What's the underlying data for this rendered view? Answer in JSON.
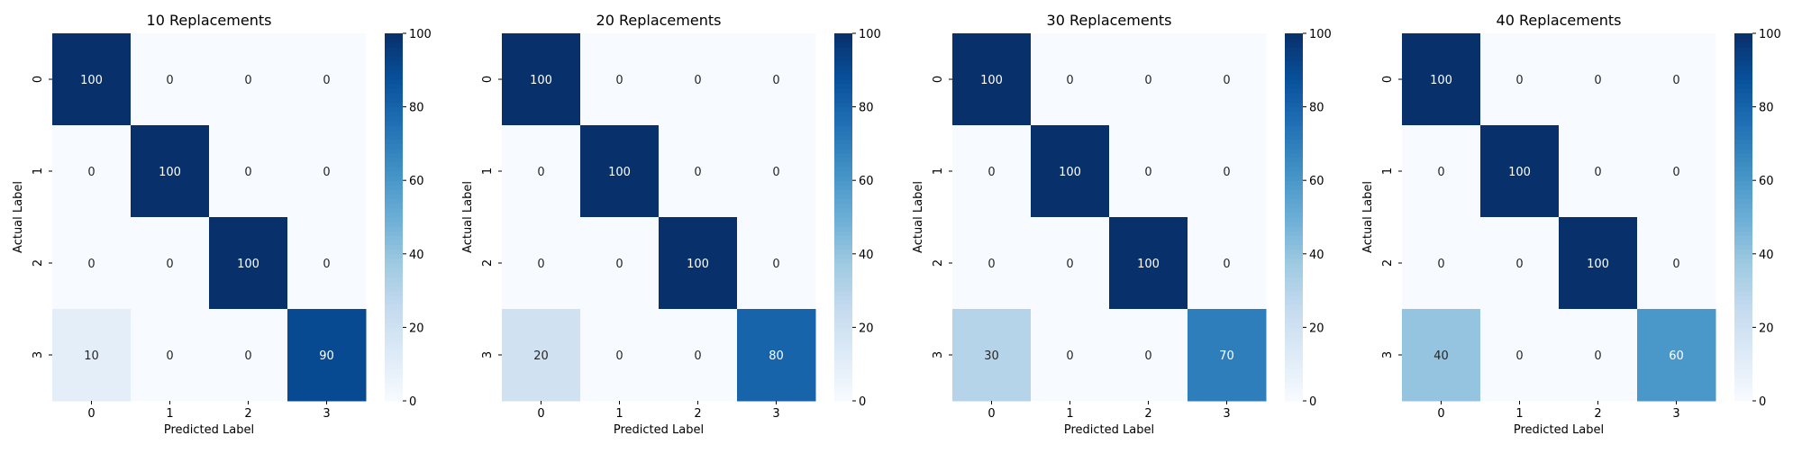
{
  "chart_data": [
    {
      "type": "heatmap",
      "title": "10 Replacements",
      "xlabel": "Predicted Label",
      "ylabel": "Actual Label",
      "x_categories": [
        "0",
        "1",
        "2",
        "3"
      ],
      "y_categories": [
        "0",
        "1",
        "2",
        "3"
      ],
      "values": [
        [
          100,
          0,
          0,
          0
        ],
        [
          0,
          100,
          0,
          0
        ],
        [
          0,
          0,
          100,
          0
        ],
        [
          10,
          0,
          0,
          90
        ]
      ],
      "colorbar": {
        "min": 0,
        "max": 100,
        "ticks": [
          "0",
          "20",
          "40",
          "60",
          "80",
          "100"
        ]
      },
      "colormap": "Blues"
    },
    {
      "type": "heatmap",
      "title": "20 Replacements",
      "xlabel": "Predicted Label",
      "ylabel": "Actual Label",
      "x_categories": [
        "0",
        "1",
        "2",
        "3"
      ],
      "y_categories": [
        "0",
        "1",
        "2",
        "3"
      ],
      "values": [
        [
          100,
          0,
          0,
          0
        ],
        [
          0,
          100,
          0,
          0
        ],
        [
          0,
          0,
          100,
          0
        ],
        [
          20,
          0,
          0,
          80
        ]
      ],
      "colorbar": {
        "min": 0,
        "max": 100,
        "ticks": [
          "0",
          "20",
          "40",
          "60",
          "80",
          "100"
        ]
      },
      "colormap": "Blues"
    },
    {
      "type": "heatmap",
      "title": "30 Replacements",
      "xlabel": "Predicted Label",
      "ylabel": "Actual Label",
      "x_categories": [
        "0",
        "1",
        "2",
        "3"
      ],
      "y_categories": [
        "0",
        "1",
        "2",
        "3"
      ],
      "values": [
        [
          100,
          0,
          0,
          0
        ],
        [
          0,
          100,
          0,
          0
        ],
        [
          0,
          0,
          100,
          0
        ],
        [
          30,
          0,
          0,
          70
        ]
      ],
      "colorbar": {
        "min": 0,
        "max": 100,
        "ticks": [
          "0",
          "20",
          "40",
          "60",
          "80",
          "100"
        ]
      },
      "colormap": "Blues"
    },
    {
      "type": "heatmap",
      "title": "40 Replacements",
      "xlabel": "Predicted Label",
      "ylabel": "Actual Label",
      "x_categories": [
        "0",
        "1",
        "2",
        "3"
      ],
      "y_categories": [
        "0",
        "1",
        "2",
        "3"
      ],
      "values": [
        [
          100,
          0,
          0,
          0
        ],
        [
          0,
          100,
          0,
          0
        ],
        [
          0,
          0,
          100,
          0
        ],
        [
          40,
          0,
          0,
          60
        ]
      ],
      "colorbar": {
        "min": 0,
        "max": 100,
        "ticks": [
          "0",
          "20",
          "40",
          "60",
          "80",
          "100"
        ]
      },
      "colormap": "Blues"
    }
  ]
}
